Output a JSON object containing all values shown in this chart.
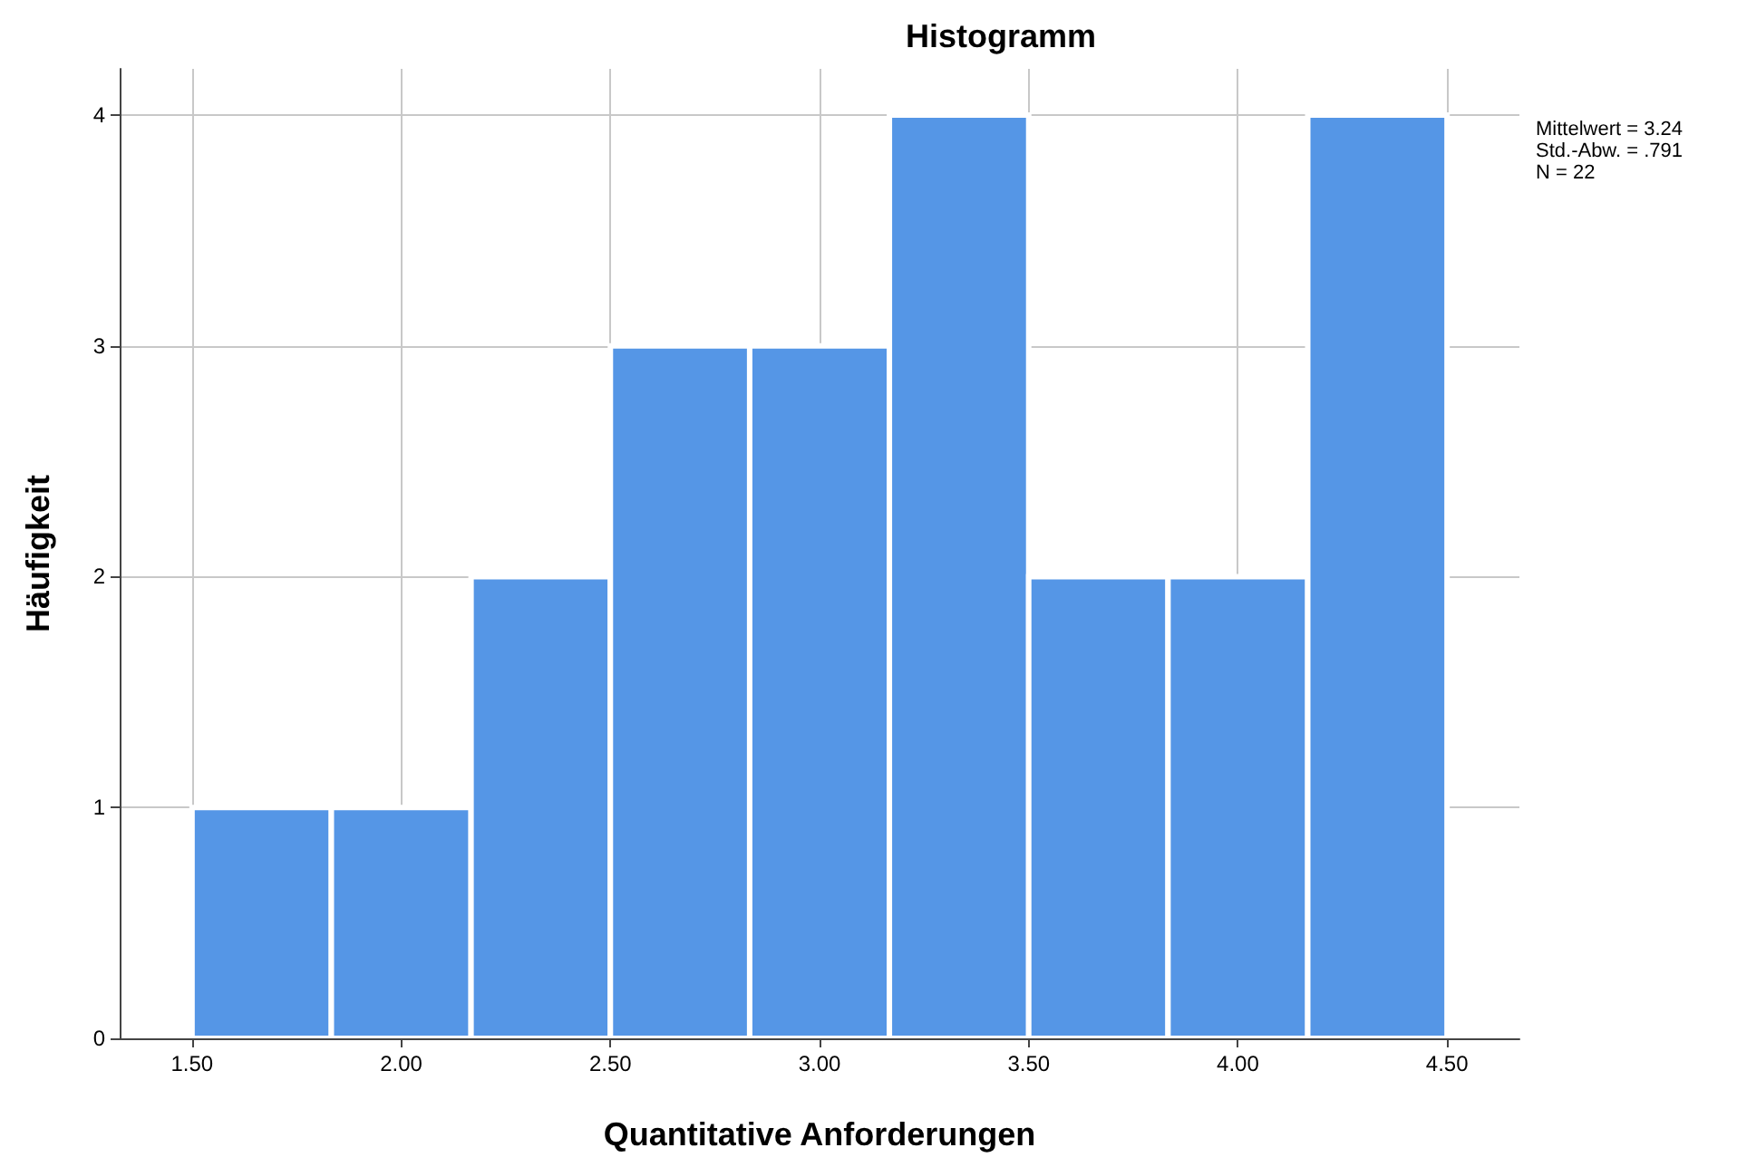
{
  "chart_data": {
    "type": "histogram",
    "title": "Histogramm",
    "xlabel": "Quantitative Anforderungen",
    "ylabel": "Häufigkeit",
    "bins": [
      1.5,
      1.833,
      2.167,
      2.5,
      2.833,
      3.167,
      3.5,
      3.833,
      4.167,
      4.5
    ],
    "values": [
      1,
      1,
      2,
      3,
      3,
      4,
      2,
      2,
      4
    ],
    "color": "#5596e6",
    "xlim": [
      1.327,
      4.673
    ],
    "xticks": [
      {
        "value": 1.5,
        "label": "1.50"
      },
      {
        "value": 2,
        "label": "2.00"
      },
      {
        "value": 2.5,
        "label": "2.50"
      },
      {
        "value": 3,
        "label": "3.00"
      },
      {
        "value": 3.5,
        "label": "3.50"
      },
      {
        "value": 4,
        "label": "4.00"
      },
      {
        "value": 4.5,
        "label": "4.50"
      }
    ],
    "ylim": [
      0,
      4.2
    ],
    "yticks": [
      0,
      1,
      2,
      3,
      4
    ],
    "grid": true,
    "annotations": [
      "Mittelwert = 3.24",
      "Std.-Abw. = .791",
      "N = 22"
    ]
  }
}
